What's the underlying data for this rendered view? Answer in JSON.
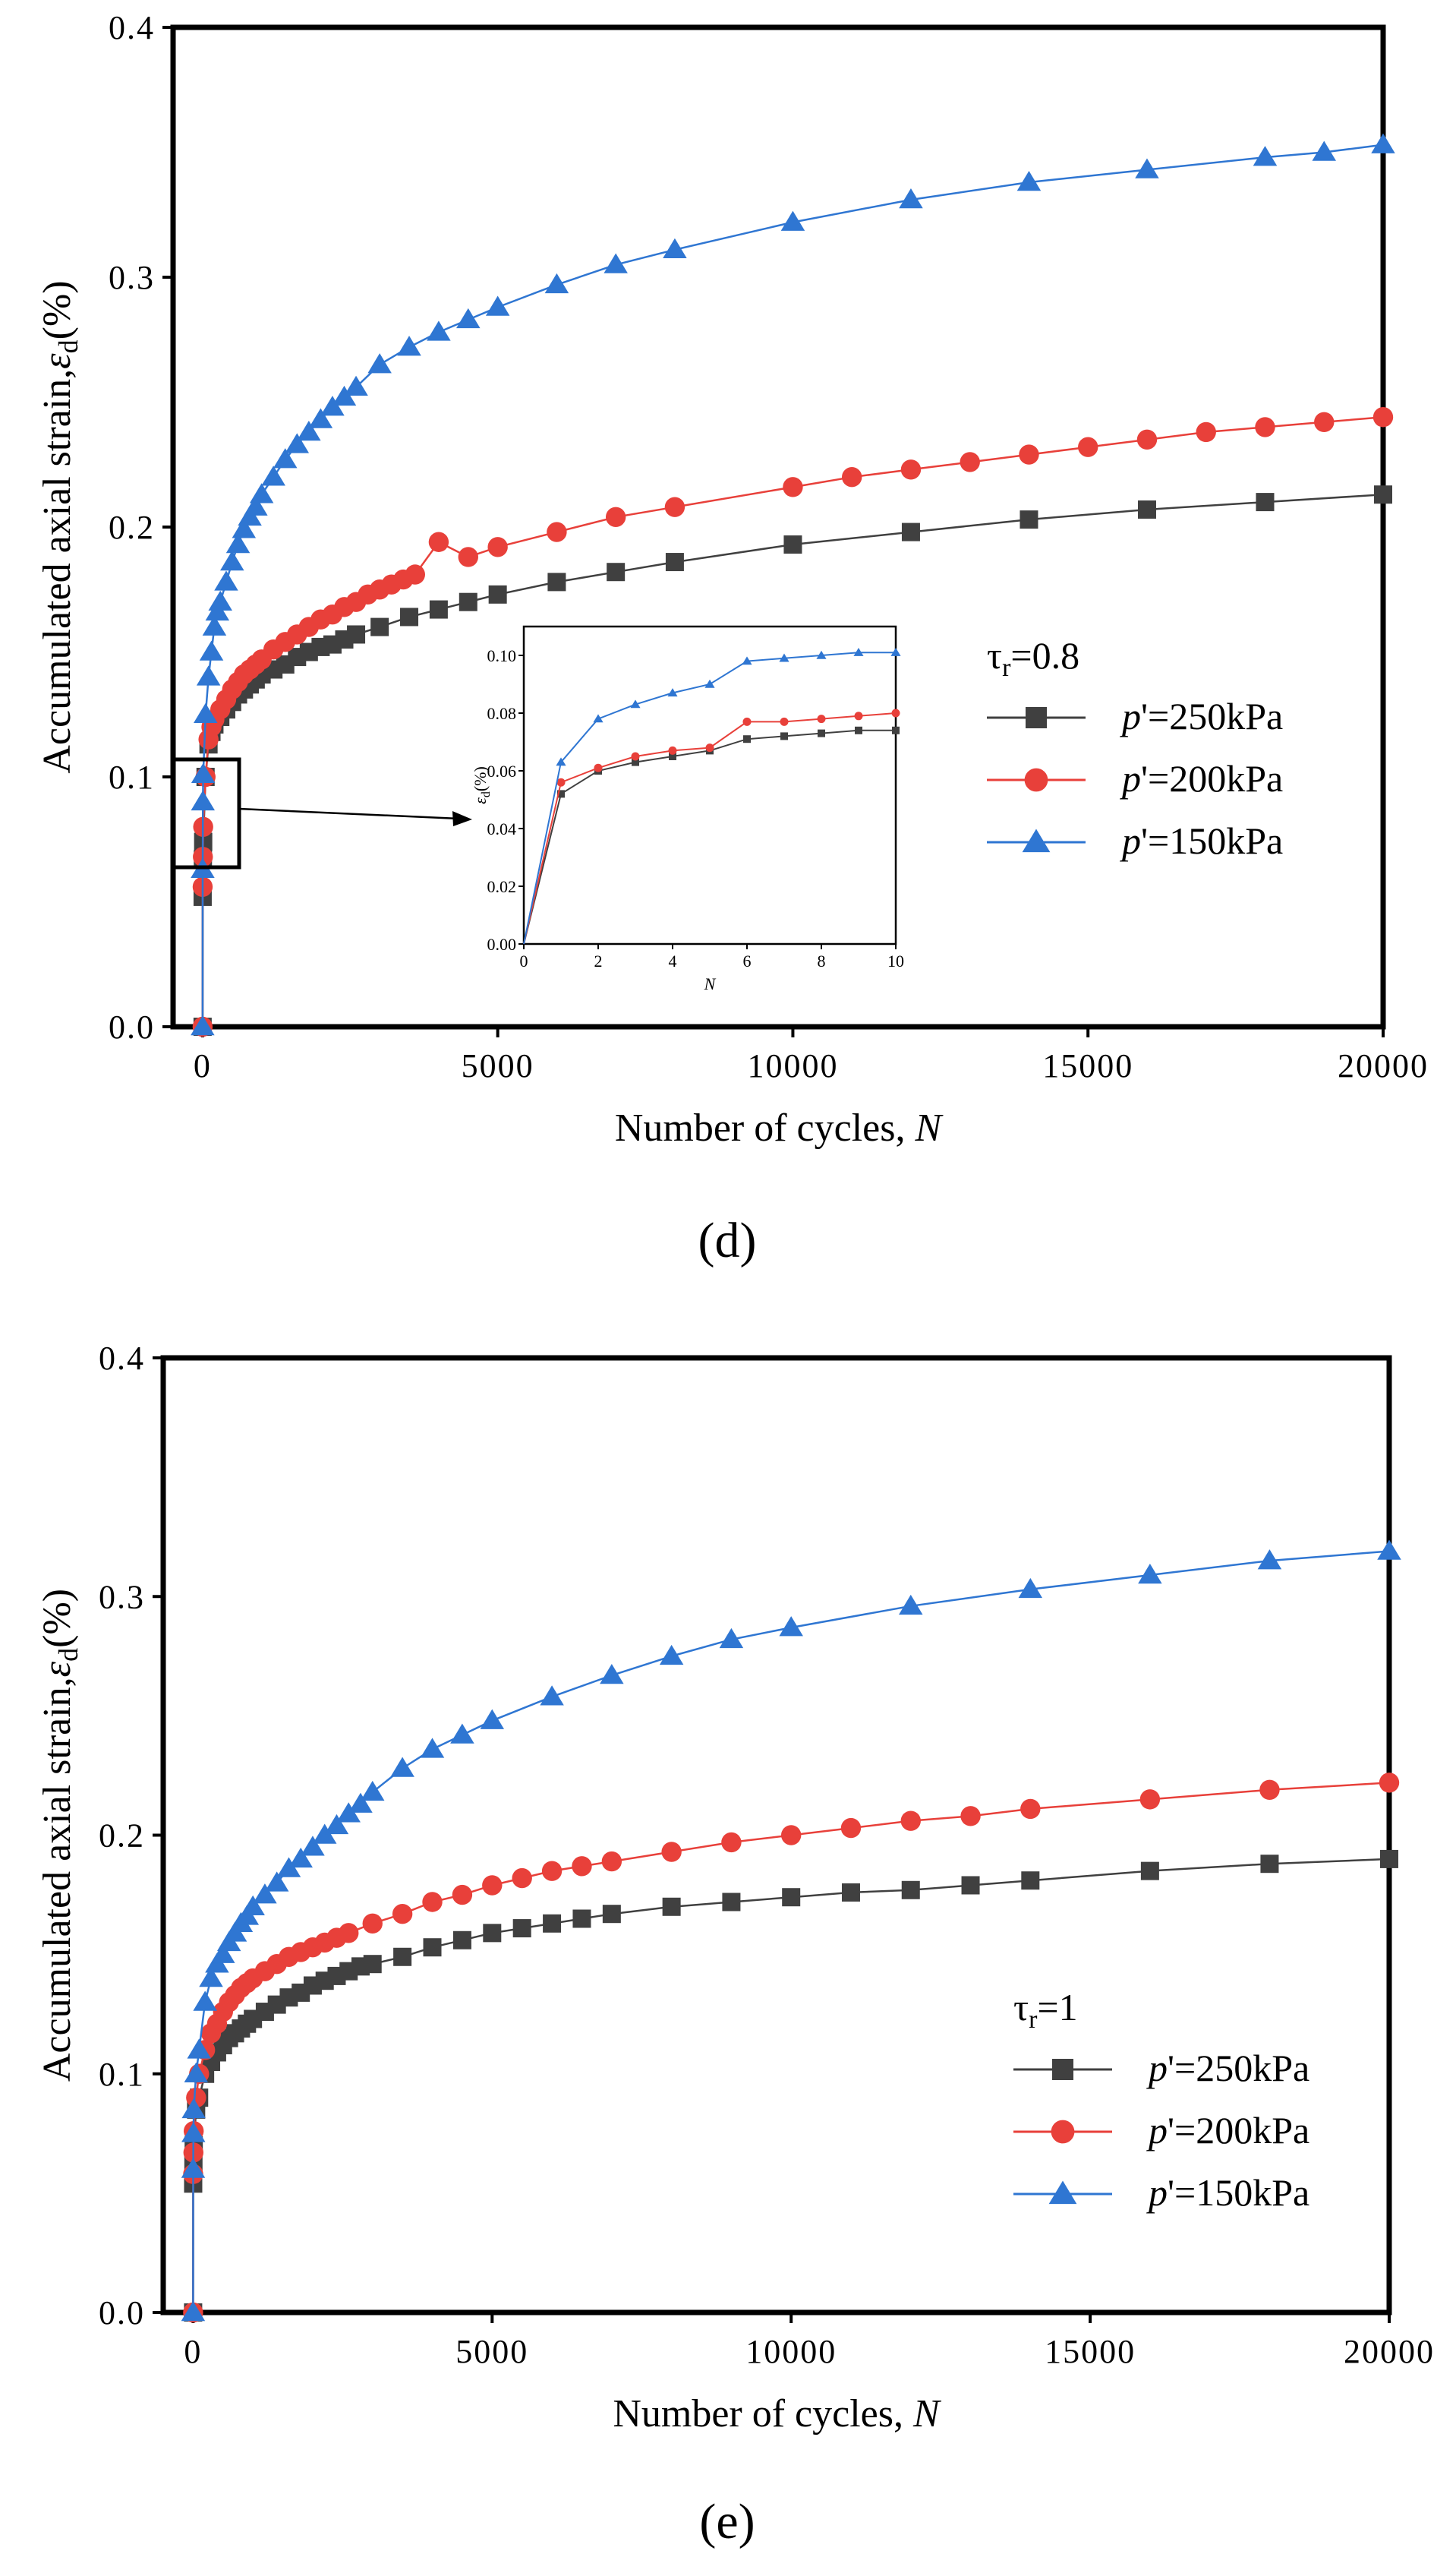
{
  "chart_data": [
    {
      "type": "line",
      "panel_label": "(d)",
      "xlabel": "Number of cycles, ",
      "xlabel_var": "N",
      "ylabel": "Accumulated axial strain,",
      "ylabel_symbol": "ε",
      "ylabel_sub": "d",
      "ylabel_unit": "(%)",
      "xlim": [
        -500,
        20000
      ],
      "ylim": [
        0,
        0.4
      ],
      "xticks": [
        "0",
        "5000",
        "10000",
        "15000",
        "20000"
      ],
      "yticks": [
        "0.0",
        "0.1",
        "0.2",
        "0.3",
        "0.4"
      ],
      "legend": {
        "title_symbol": "τ",
        "title_sub": "r",
        "title_value": "=0.8",
        "placement": "right-middle"
      },
      "series": [
        {
          "name": "p'=250kPa",
          "name_var": "p",
          "name_rest": "'=250kPa",
          "color": "#404040",
          "marker": "square",
          "x": [
            0,
            1,
            5,
            10,
            50,
            100,
            150,
            200,
            300,
            400,
            500,
            600,
            700,
            800,
            900,
            1000,
            1200,
            1400,
            1600,
            1800,
            2000,
            2200,
            2400,
            2600,
            3000,
            3500,
            4000,
            4500,
            5000,
            6000,
            7000,
            8000,
            10000,
            12000,
            14000,
            16000,
            18000,
            20000
          ],
          "y": [
            0,
            0.052,
            0.067,
            0.074,
            0.1,
            0.113,
            0.118,
            0.121,
            0.124,
            0.127,
            0.13,
            0.133,
            0.135,
            0.137,
            0.139,
            0.141,
            0.143,
            0.145,
            0.148,
            0.15,
            0.152,
            0.153,
            0.155,
            0.157,
            0.16,
            0.164,
            0.167,
            0.17,
            0.173,
            0.178,
            0.182,
            0.186,
            0.193,
            0.198,
            0.203,
            0.207,
            0.21,
            0.213
          ]
        },
        {
          "name": "p'=200kPa",
          "name_var": "p",
          "name_rest": "'=200kPa",
          "color": "#e8403a",
          "marker": "circle",
          "x": [
            0,
            1,
            5,
            10,
            50,
            100,
            150,
            200,
            300,
            400,
            500,
            600,
            700,
            800,
            900,
            1000,
            1200,
            1400,
            1600,
            1800,
            2000,
            2200,
            2400,
            2600,
            2800,
            3000,
            3200,
            3400,
            3600,
            4000,
            4500,
            5000,
            6000,
            7000,
            8000,
            10000,
            11000,
            12000,
            13000,
            14000,
            15000,
            16000,
            17000,
            18000,
            19000,
            20000
          ],
          "y": [
            0,
            0.056,
            0.068,
            0.08,
            0.1,
            0.115,
            0.12,
            0.123,
            0.127,
            0.131,
            0.135,
            0.138,
            0.141,
            0.143,
            0.145,
            0.147,
            0.151,
            0.154,
            0.157,
            0.16,
            0.163,
            0.165,
            0.168,
            0.17,
            0.173,
            0.175,
            0.177,
            0.179,
            0.181,
            0.194,
            0.188,
            0.192,
            0.198,
            0.204,
            0.208,
            0.216,
            0.22,
            0.223,
            0.226,
            0.229,
            0.232,
            0.235,
            0.238,
            0.24,
            0.242,
            0.244
          ]
        },
        {
          "name": "p'=150kPa",
          "name_var": "p",
          "name_rest": "'=150kPa",
          "color": "#2f76d2",
          "marker": "triangle",
          "x": [
            0,
            1,
            5,
            10,
            50,
            100,
            150,
            200,
            250,
            300,
            400,
            500,
            600,
            700,
            800,
            900,
            1000,
            1200,
            1400,
            1600,
            1800,
            2000,
            2200,
            2400,
            2600,
            3000,
            3500,
            4000,
            4500,
            5000,
            6000,
            7000,
            8000,
            10000,
            12000,
            14000,
            16000,
            18000,
            19000,
            20000
          ],
          "y": [
            0,
            0.063,
            0.09,
            0.101,
            0.125,
            0.14,
            0.15,
            0.16,
            0.166,
            0.17,
            0.178,
            0.186,
            0.193,
            0.199,
            0.204,
            0.208,
            0.213,
            0.22,
            0.227,
            0.233,
            0.238,
            0.243,
            0.248,
            0.252,
            0.256,
            0.265,
            0.272,
            0.278,
            0.283,
            0.288,
            0.297,
            0.305,
            0.311,
            0.322,
            0.331,
            0.338,
            0.343,
            0.348,
            0.35,
            0.353
          ]
        }
      ],
      "annotation": "zoom box around N = 0–10 with arrow pointing to inset",
      "inset": {
        "xlabel": "N",
        "ylabel_symbol": "ε",
        "ylabel_sub": "d",
        "ylabel_unit": "(%)",
        "xlim": [
          0,
          10
        ],
        "ylim": [
          0,
          0.11
        ],
        "xticks": [
          "0",
          "2",
          "4",
          "6",
          "8",
          "10"
        ],
        "yticks": [
          "0.00",
          "0.02",
          "0.04",
          "0.06",
          "0.08",
          "0.10"
        ],
        "x": [
          0,
          1,
          2,
          3,
          4,
          5,
          6,
          7,
          8,
          9,
          10
        ],
        "series": [
          {
            "name": "p'=250kPa",
            "color": "#404040",
            "marker": "square",
            "y": [
              0,
              0.052,
              0.06,
              0.063,
              0.065,
              0.067,
              0.071,
              0.072,
              0.073,
              0.074,
              0.074
            ]
          },
          {
            "name": "p'=200kPa",
            "color": "#e8403a",
            "marker": "circle",
            "y": [
              0,
              0.056,
              0.061,
              0.065,
              0.067,
              0.068,
              0.077,
              0.077,
              0.078,
              0.079,
              0.08
            ]
          },
          {
            "name": "p'=150kPa",
            "color": "#2f76d2",
            "marker": "triangle",
            "y": [
              0,
              0.063,
              0.078,
              0.083,
              0.087,
              0.09,
              0.098,
              0.099,
              0.1,
              0.101,
              0.101
            ]
          }
        ]
      }
    },
    {
      "type": "line",
      "panel_label": "(e)",
      "xlabel": "Number of cycles, ",
      "xlabel_var": "N",
      "ylabel": "Accumulated axial strain,",
      "ylabel_symbol": "ε",
      "ylabel_sub": "d",
      "ylabel_unit": "(%)",
      "xlim": [
        -500,
        20000
      ],
      "ylim": [
        0,
        0.4
      ],
      "xticks": [
        "0",
        "5000",
        "10000",
        "15000",
        "20000"
      ],
      "yticks": [
        "0.0",
        "0.1",
        "0.2",
        "0.3",
        "0.4"
      ],
      "legend": {
        "title_symbol": "τ",
        "title_sub": "r",
        "title_value": "=1",
        "placement": "right-middle"
      },
      "series": [
        {
          "name": "p'=250kPa",
          "name_var": "p",
          "name_rest": "'=250kPa",
          "color": "#404040",
          "marker": "square",
          "x": [
            0,
            1,
            5,
            10,
            50,
            100,
            200,
            300,
            400,
            500,
            600,
            700,
            800,
            900,
            1000,
            1200,
            1400,
            1600,
            1800,
            2000,
            2200,
            2400,
            2600,
            2800,
            3000,
            3500,
            4000,
            4500,
            5000,
            5500,
            6000,
            6500,
            7000,
            8000,
            9000,
            10000,
            11000,
            12000,
            13000,
            14000,
            16000,
            18000,
            20000
          ],
          "y": [
            0,
            0.054,
            0.062,
            0.07,
            0.085,
            0.09,
            0.1,
            0.105,
            0.109,
            0.112,
            0.115,
            0.117,
            0.119,
            0.121,
            0.123,
            0.126,
            0.129,
            0.132,
            0.134,
            0.137,
            0.139,
            0.141,
            0.143,
            0.145,
            0.146,
            0.149,
            0.153,
            0.156,
            0.159,
            0.161,
            0.163,
            0.165,
            0.167,
            0.17,
            0.172,
            0.174,
            0.176,
            0.177,
            0.179,
            0.181,
            0.185,
            0.188,
            0.19
          ]
        },
        {
          "name": "p'=200kPa",
          "name_var": "p",
          "name_rest": "'=200kPa",
          "color": "#e8403a",
          "marker": "circle",
          "x": [
            0,
            1,
            5,
            10,
            50,
            100,
            200,
            300,
            400,
            500,
            600,
            700,
            800,
            900,
            1000,
            1200,
            1400,
            1600,
            1800,
            2000,
            2200,
            2400,
            2600,
            3000,
            3500,
            4000,
            4500,
            5000,
            5500,
            6000,
            6500,
            7000,
            8000,
            9000,
            10000,
            11000,
            12000,
            13000,
            14000,
            16000,
            18000,
            20000
          ],
          "y": [
            0,
            0.058,
            0.067,
            0.076,
            0.09,
            0.1,
            0.11,
            0.117,
            0.121,
            0.126,
            0.13,
            0.133,
            0.136,
            0.138,
            0.14,
            0.143,
            0.146,
            0.149,
            0.151,
            0.153,
            0.155,
            0.157,
            0.159,
            0.163,
            0.167,
            0.172,
            0.175,
            0.179,
            0.182,
            0.185,
            0.187,
            0.189,
            0.193,
            0.197,
            0.2,
            0.203,
            0.206,
            0.208,
            0.211,
            0.215,
            0.219,
            0.222
          ]
        },
        {
          "name": "p'=150kPa",
          "name_var": "p",
          "name_rest": "'=150kPa",
          "color": "#2f76d2",
          "marker": "triangle",
          "x": [
            0,
            1,
            5,
            10,
            50,
            100,
            200,
            300,
            400,
            500,
            600,
            700,
            800,
            900,
            1000,
            1200,
            1400,
            1600,
            1800,
            2000,
            2200,
            2400,
            2600,
            2800,
            3000,
            3500,
            4000,
            4500,
            5000,
            6000,
            7000,
            8000,
            9000,
            10000,
            12000,
            14000,
            16000,
            18000,
            20000
          ],
          "y": [
            0,
            0.06,
            0.075,
            0.085,
            0.1,
            0.11,
            0.13,
            0.14,
            0.146,
            0.15,
            0.155,
            0.159,
            0.163,
            0.166,
            0.17,
            0.175,
            0.18,
            0.186,
            0.19,
            0.195,
            0.2,
            0.204,
            0.209,
            0.213,
            0.218,
            0.228,
            0.236,
            0.242,
            0.248,
            0.258,
            0.267,
            0.275,
            0.282,
            0.287,
            0.296,
            0.303,
            0.309,
            0.315,
            0.319
          ]
        }
      ]
    }
  ]
}
